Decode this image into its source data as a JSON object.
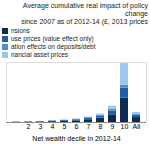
{
  "chart_data": {
    "type": "bar",
    "stacked": true,
    "title": "Average cumulative real impact of policy change\nsince 2007 as of 2012-14 (£, 2013 prices",
    "x_label": "Net wealth decile in 2012-14",
    "categories": [
      null,
      "2",
      "3",
      "4",
      "5",
      "6",
      "7",
      "8",
      "9",
      "10",
      "All"
    ],
    "series": [
      {
        "name": "nsions",
        "color": "#0d2b52",
        "values": [
          0.5,
          0.8,
          1,
          1.5,
          2,
          3,
          5,
          8,
          14,
          45,
          9
        ]
      },
      {
        "name": "use prices (value effect only)",
        "color": "#1f5fa8",
        "values": [
          0.2,
          0.3,
          0.5,
          1,
          1.5,
          2,
          3,
          4,
          7,
          18,
          4
        ]
      },
      {
        "name": "ation effects on deposits/debt",
        "color": "#4a8fd0",
        "values": [
          0.1,
          0.2,
          0.3,
          0.5,
          0.6,
          0.8,
          1,
          1.5,
          3,
          5,
          1.5
        ]
      },
      {
        "name": "nancial asset prices",
        "color": "#9dc8ec",
        "values": [
          0.1,
          0.1,
          0.2,
          0.3,
          0.4,
          0.5,
          1,
          2,
          6,
          40,
          4
        ]
      }
    ],
    "ylim": [
      0,
      110
    ],
    "tick_labels": "x",
    "legend": "top-left"
  }
}
